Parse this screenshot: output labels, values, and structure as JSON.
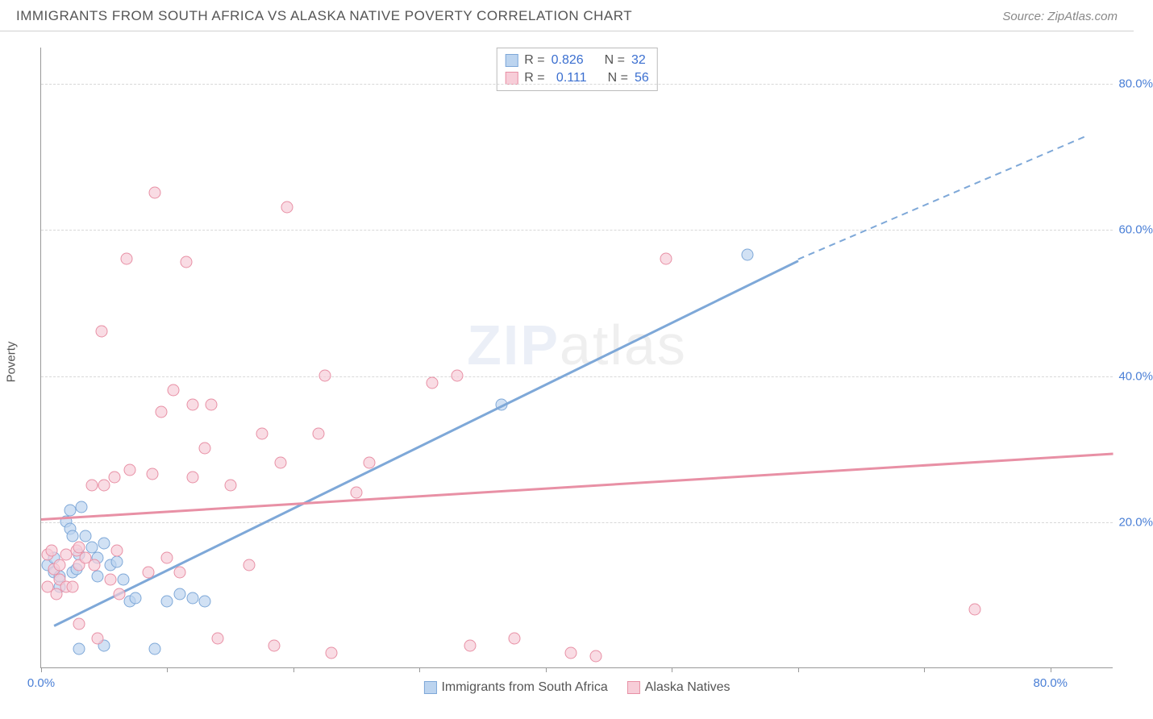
{
  "header": {
    "title": "IMMIGRANTS FROM SOUTH AFRICA VS ALASKA NATIVE POVERTY CORRELATION CHART",
    "source_prefix": "Source: ",
    "source_name": "ZipAtlas.com"
  },
  "chart": {
    "type": "scatter",
    "ylabel": "Poverty",
    "xlim": [
      0,
      85
    ],
    "ylim": [
      0,
      85
    ],
    "xtick_positions": [
      0,
      10,
      20,
      30,
      40,
      50,
      60,
      70,
      80
    ],
    "xtick_labels": {
      "0": "0.0%",
      "80": "80.0%"
    },
    "ytick_positions": [
      20,
      40,
      60,
      80
    ],
    "ytick_labels": [
      "20.0%",
      "40.0%",
      "60.0%",
      "80.0%"
    ],
    "grid_color": "#d8d8d8",
    "axis_color": "#999999",
    "label_color": "#4a7fd6",
    "background_color": "#ffffff",
    "watermark_main": "ZIP",
    "watermark_sub": "atlas",
    "series": [
      {
        "name": "Immigrants from South Africa",
        "fill": "#bcd4ef",
        "stroke": "#7ea8d8",
        "points": [
          [
            0.5,
            14
          ],
          [
            1,
            13
          ],
          [
            1,
            15
          ],
          [
            1.5,
            11
          ],
          [
            1.5,
            12.5
          ],
          [
            2,
            20
          ],
          [
            2.3,
            21.5
          ],
          [
            2.3,
            19
          ],
          [
            2.5,
            18
          ],
          [
            2.5,
            13
          ],
          [
            2.8,
            13.5
          ],
          [
            3,
            15.5
          ],
          [
            3.5,
            18
          ],
          [
            3.2,
            22
          ],
          [
            4,
            16.5
          ],
          [
            4.5,
            12.5
          ],
          [
            4.5,
            15
          ],
          [
            5,
            17
          ],
          [
            5.5,
            14
          ],
          [
            6,
            14.5
          ],
          [
            6.5,
            12
          ],
          [
            7,
            9
          ],
          [
            7.5,
            9.5
          ],
          [
            9,
            2.5
          ],
          [
            10,
            9
          ],
          [
            11,
            10
          ],
          [
            12,
            9.5
          ],
          [
            13,
            9
          ],
          [
            36.5,
            36
          ],
          [
            56,
            56.5
          ],
          [
            3,
            2.5
          ],
          [
            5,
            3
          ]
        ],
        "trend": {
          "x1": 1,
          "y1": 6,
          "x2": 60,
          "y2": 56,
          "dashed_from_x": 60,
          "dashed_to": [
            83,
            73
          ]
        },
        "r_label": "R =",
        "r_value": "0.826",
        "n_label": "N =",
        "n_value": "32"
      },
      {
        "name": "Alaska Natives",
        "fill": "#f7cdd8",
        "stroke": "#e890a5",
        "points": [
          [
            0.5,
            11
          ],
          [
            0.5,
            15.5
          ],
          [
            0.8,
            16
          ],
          [
            1,
            13.5
          ],
          [
            1.2,
            10
          ],
          [
            1.5,
            14
          ],
          [
            1.5,
            12
          ],
          [
            2,
            11
          ],
          [
            2,
            15.5
          ],
          [
            2.5,
            11
          ],
          [
            2.8,
            16
          ],
          [
            3,
            14
          ],
          [
            3,
            6
          ],
          [
            3,
            16.5
          ],
          [
            3.5,
            15
          ],
          [
            4,
            25
          ],
          [
            4.2,
            14
          ],
          [
            4.5,
            4
          ],
          [
            4.8,
            46
          ],
          [
            5,
            25
          ],
          [
            5.5,
            12
          ],
          [
            5.8,
            26
          ],
          [
            6,
            16
          ],
          [
            6.2,
            10
          ],
          [
            6.8,
            56
          ],
          [
            7,
            27
          ],
          [
            8.5,
            13
          ],
          [
            8.8,
            26.5
          ],
          [
            9,
            65
          ],
          [
            9.5,
            35
          ],
          [
            10,
            15
          ],
          [
            10.5,
            38
          ],
          [
            11,
            13
          ],
          [
            11.5,
            55.5
          ],
          [
            12,
            36
          ],
          [
            12,
            26
          ],
          [
            13,
            30
          ],
          [
            13.5,
            36
          ],
          [
            14,
            4
          ],
          [
            15,
            25
          ],
          [
            16.5,
            14
          ],
          [
            17.5,
            32
          ],
          [
            18.5,
            3
          ],
          [
            19,
            28
          ],
          [
            19.5,
            63
          ],
          [
            22,
            32
          ],
          [
            22.5,
            40
          ],
          [
            23,
            2
          ],
          [
            25,
            24
          ],
          [
            26,
            28
          ],
          [
            31,
            39
          ],
          [
            33,
            40
          ],
          [
            34,
            3
          ],
          [
            37.5,
            4
          ],
          [
            42,
            2
          ],
          [
            44,
            1.5
          ],
          [
            49.5,
            56
          ],
          [
            74,
            8
          ]
        ],
        "trend": {
          "x1": 0,
          "y1": 20.5,
          "x2": 85,
          "y2": 29.5
        },
        "r_label": "R =",
        "r_value": "0.111",
        "n_label": "N =",
        "n_value": "56"
      }
    ]
  }
}
